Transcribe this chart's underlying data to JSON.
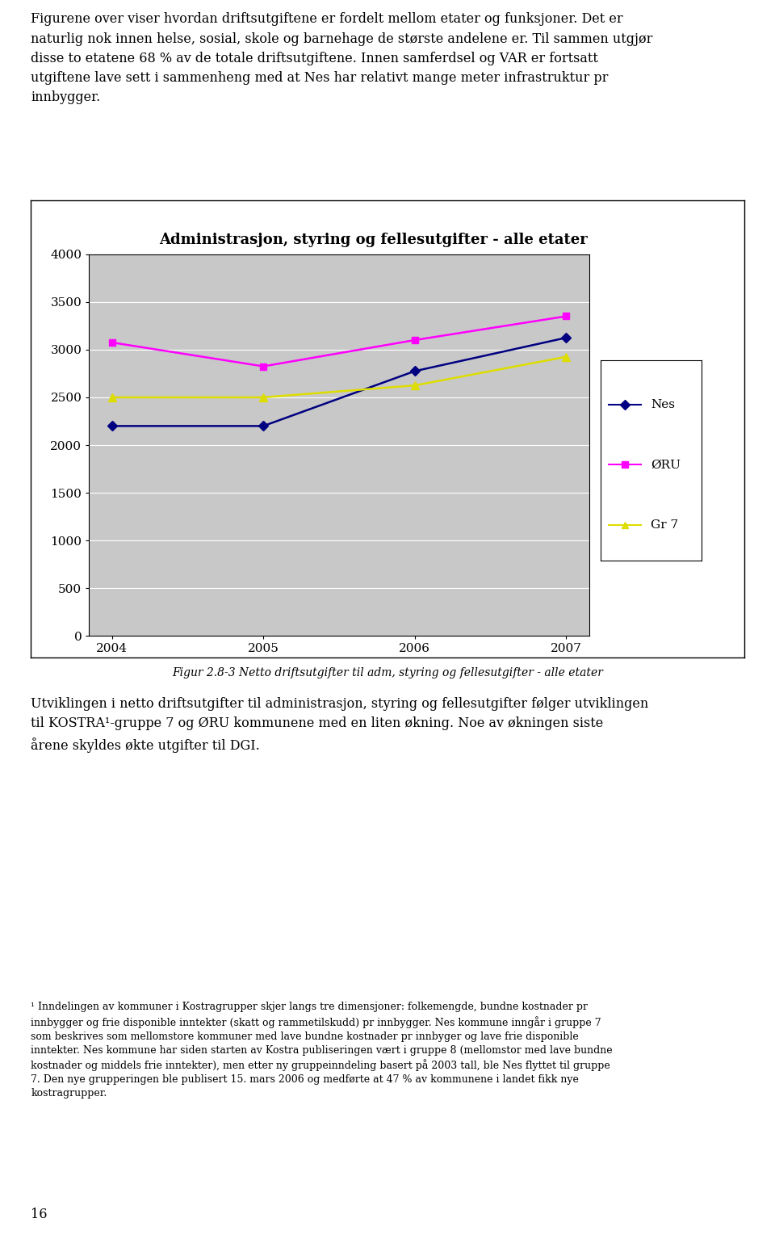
{
  "title": "Administrasjon, styring og fellesutgifter - alle etater",
  "years": [
    2004,
    2005,
    2006,
    2007
  ],
  "nes": [
    2200,
    2200,
    2775,
    3125
  ],
  "oru": [
    3075,
    2825,
    3100,
    3350
  ],
  "gr7": [
    2500,
    2500,
    2625,
    2925
  ],
  "nes_color": "#000080",
  "oru_color": "#FF00FF",
  "gr7_color": "#FFFF00",
  "ylim": [
    0,
    4000
  ],
  "yticks": [
    0,
    500,
    1000,
    1500,
    2000,
    2500,
    3000,
    3500,
    4000
  ],
  "plot_bg": "#C8C8C8",
  "legend_labels": [
    "Nes",
    "ØRU",
    "Gr 7"
  ],
  "caption": "Figur 2.8-3 Netto driftsutgifter til adm, styring og fellesutgifter - alle etater",
  "para1_lines": [
    "Figurene over viser hvordan driftsutgiftene er fordelt mellom etater og funksjoner. Det er",
    "naturlig nok innen helse, sosial, skole og barnehage de største andelene er. Til sammen utgjør",
    "disse to etatene 68 % av de totale driftsutgiftene. Innen samferdsel og VAR er fortsatt",
    "utgiftene lave sett i sammenheng med at Nes har relativt mange meter infrastruktur pr",
    "innbygger."
  ],
  "para2_lines": [
    "Utviklingen i netto driftsutgifter til administrasjon, styring og fellesutgifter følger utviklingen",
    "til KOSTRA¹-gruppe 7 og ØRU kommunene med en liten økning. Noe av økningen siste",
    "årene skyldes økte utgifter til DGI."
  ],
  "footnote_lines": [
    "¹ Inndelingen av kommuner i Kostragrupper skjer langs tre dimensjoner: folkemengde, bundne kostnader pr",
    "innbygger og frie disponible inntekter (skatt og rammetilskudd) pr innbygger. Nes kommune inngår i gruppe 7",
    "som beskrives som mellomstore kommuner med lave bundne kostnader pr innbyger og lave frie disponible",
    "inntekter. Nes kommune har siden starten av Kostra publiseringen vært i gruppe 8 (mellomstor med lave bundne",
    "kostnader og middels frie inntekter), men etter ny gruppeinndeling basert på 2003 tall, ble Nes flyttet til gruppe",
    "7. Den nye grupperingen ble publisert 15. mars 2006 og medførte at 47 % av kommunene i landet fikk nye",
    "kostragrupper."
  ],
  "page_num": "16"
}
